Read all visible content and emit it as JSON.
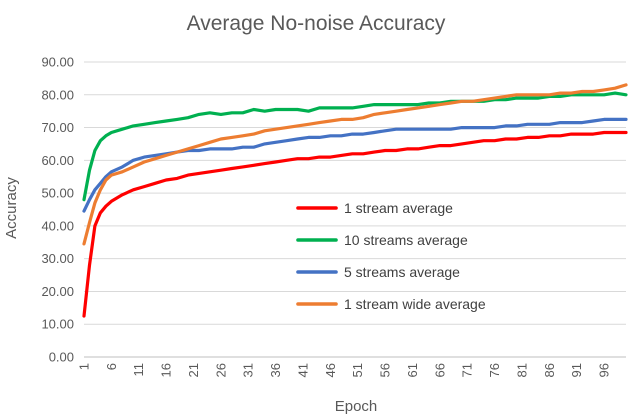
{
  "chart_data": {
    "type": "line",
    "title": "Average No-noise Accuracy",
    "xlabel": "Epoch",
    "ylabel": "Accuracy",
    "ylim": [
      0,
      90
    ],
    "yticks": [
      "0.00",
      "10.00",
      "20.00",
      "30.00",
      "40.00",
      "50.00",
      "60.00",
      "70.00",
      "80.00",
      "90.00"
    ],
    "xticks": [
      "1",
      "6",
      "11",
      "16",
      "21",
      "26",
      "31",
      "36",
      "41",
      "46",
      "51",
      "56",
      "61",
      "66",
      "71",
      "76",
      "81",
      "86",
      "91",
      "96"
    ],
    "grid": true,
    "legend_position": "center-right",
    "series": [
      {
        "name": "1 stream average",
        "color": "#ff0000",
        "points": [
          [
            1,
            12.5
          ],
          [
            2,
            28
          ],
          [
            3,
            40
          ],
          [
            4,
            44
          ],
          [
            5,
            46
          ],
          [
            6,
            47.5
          ],
          [
            8,
            49.5
          ],
          [
            10,
            51
          ],
          [
            12,
            52
          ],
          [
            14,
            53
          ],
          [
            16,
            54
          ],
          [
            18,
            54.5
          ],
          [
            20,
            55.5
          ],
          [
            22,
            56
          ],
          [
            24,
            56.5
          ],
          [
            26,
            57
          ],
          [
            28,
            57.5
          ],
          [
            30,
            58
          ],
          [
            32,
            58.5
          ],
          [
            34,
            59
          ],
          [
            36,
            59.5
          ],
          [
            38,
            60
          ],
          [
            40,
            60.5
          ],
          [
            42,
            60.5
          ],
          [
            44,
            61
          ],
          [
            46,
            61
          ],
          [
            48,
            61.5
          ],
          [
            50,
            62
          ],
          [
            52,
            62
          ],
          [
            54,
            62.5
          ],
          [
            56,
            63
          ],
          [
            58,
            63
          ],
          [
            60,
            63.5
          ],
          [
            62,
            63.5
          ],
          [
            64,
            64
          ],
          [
            66,
            64.5
          ],
          [
            68,
            64.5
          ],
          [
            70,
            65
          ],
          [
            72,
            65.5
          ],
          [
            74,
            66
          ],
          [
            76,
            66
          ],
          [
            78,
            66.5
          ],
          [
            80,
            66.5
          ],
          [
            82,
            67
          ],
          [
            84,
            67
          ],
          [
            86,
            67.5
          ],
          [
            88,
            67.5
          ],
          [
            90,
            68
          ],
          [
            92,
            68
          ],
          [
            94,
            68
          ],
          [
            96,
            68.5
          ],
          [
            98,
            68.5
          ],
          [
            100,
            68.5
          ]
        ]
      },
      {
        "name": "10 streams average",
        "color": "#00b050",
        "points": [
          [
            1,
            48
          ],
          [
            2,
            57
          ],
          [
            3,
            63
          ],
          [
            4,
            66
          ],
          [
            5,
            67.5
          ],
          [
            6,
            68.5
          ],
          [
            8,
            69.5
          ],
          [
            10,
            70.5
          ],
          [
            12,
            71
          ],
          [
            14,
            71.5
          ],
          [
            16,
            72
          ],
          [
            18,
            72.5
          ],
          [
            20,
            73
          ],
          [
            22,
            74
          ],
          [
            24,
            74.5
          ],
          [
            26,
            74
          ],
          [
            28,
            74.5
          ],
          [
            30,
            74.5
          ],
          [
            32,
            75.5
          ],
          [
            34,
            75
          ],
          [
            36,
            75.5
          ],
          [
            38,
            75.5
          ],
          [
            40,
            75.5
          ],
          [
            42,
            75
          ],
          [
            44,
            76
          ],
          [
            46,
            76
          ],
          [
            48,
            76
          ],
          [
            50,
            76
          ],
          [
            52,
            76.5
          ],
          [
            54,
            77
          ],
          [
            56,
            77
          ],
          [
            58,
            77
          ],
          [
            60,
            77
          ],
          [
            62,
            77
          ],
          [
            64,
            77.5
          ],
          [
            66,
            77.5
          ],
          [
            68,
            78
          ],
          [
            70,
            78
          ],
          [
            72,
            78
          ],
          [
            74,
            78
          ],
          [
            76,
            78.5
          ],
          [
            78,
            78.5
          ],
          [
            80,
            79
          ],
          [
            82,
            79
          ],
          [
            84,
            79
          ],
          [
            86,
            79.5
          ],
          [
            88,
            79.5
          ],
          [
            90,
            80
          ],
          [
            92,
            80
          ],
          [
            94,
            80
          ],
          [
            96,
            80
          ],
          [
            98,
            80.5
          ],
          [
            100,
            80
          ]
        ]
      },
      {
        "name": "5 streams average",
        "color": "#4472c4",
        "points": [
          [
            1,
            44.5
          ],
          [
            2,
            48
          ],
          [
            3,
            51
          ],
          [
            4,
            53
          ],
          [
            5,
            55
          ],
          [
            6,
            56.5
          ],
          [
            8,
            58
          ],
          [
            10,
            60
          ],
          [
            12,
            61
          ],
          [
            14,
            61.5
          ],
          [
            16,
            62
          ],
          [
            18,
            62.5
          ],
          [
            20,
            63
          ],
          [
            22,
            63
          ],
          [
            24,
            63.5
          ],
          [
            26,
            63.5
          ],
          [
            28,
            63.5
          ],
          [
            30,
            64
          ],
          [
            32,
            64
          ],
          [
            34,
            65
          ],
          [
            36,
            65.5
          ],
          [
            38,
            66
          ],
          [
            40,
            66.5
          ],
          [
            42,
            67
          ],
          [
            44,
            67
          ],
          [
            46,
            67.5
          ],
          [
            48,
            67.5
          ],
          [
            50,
            68
          ],
          [
            52,
            68
          ],
          [
            54,
            68.5
          ],
          [
            56,
            69
          ],
          [
            58,
            69.5
          ],
          [
            60,
            69.5
          ],
          [
            62,
            69.5
          ],
          [
            64,
            69.5
          ],
          [
            66,
            69.5
          ],
          [
            68,
            69.5
          ],
          [
            70,
            70
          ],
          [
            72,
            70
          ],
          [
            74,
            70
          ],
          [
            76,
            70
          ],
          [
            78,
            70.5
          ],
          [
            80,
            70.5
          ],
          [
            82,
            71
          ],
          [
            84,
            71
          ],
          [
            86,
            71
          ],
          [
            88,
            71.5
          ],
          [
            90,
            71.5
          ],
          [
            92,
            71.5
          ],
          [
            94,
            72
          ],
          [
            96,
            72.5
          ],
          [
            98,
            72.5
          ],
          [
            100,
            72.5
          ]
        ]
      },
      {
        "name": "1 stream wide average",
        "color": "#ed7d31",
        "points": [
          [
            1,
            34.5
          ],
          [
            2,
            41
          ],
          [
            3,
            47
          ],
          [
            4,
            51
          ],
          [
            5,
            54
          ],
          [
            6,
            55.5
          ],
          [
            8,
            56.5
          ],
          [
            10,
            58
          ],
          [
            12,
            59.5
          ],
          [
            14,
            60.5
          ],
          [
            16,
            61.5
          ],
          [
            18,
            62.5
          ],
          [
            20,
            63.5
          ],
          [
            22,
            64.5
          ],
          [
            24,
            65.5
          ],
          [
            26,
            66.5
          ],
          [
            28,
            67
          ],
          [
            30,
            67.5
          ],
          [
            32,
            68
          ],
          [
            34,
            69
          ],
          [
            36,
            69.5
          ],
          [
            38,
            70
          ],
          [
            40,
            70.5
          ],
          [
            42,
            71
          ],
          [
            44,
            71.5
          ],
          [
            46,
            72
          ],
          [
            48,
            72.5
          ],
          [
            50,
            72.5
          ],
          [
            52,
            73
          ],
          [
            54,
            74
          ],
          [
            56,
            74.5
          ],
          [
            58,
            75
          ],
          [
            60,
            75.5
          ],
          [
            62,
            76
          ],
          [
            64,
            76.5
          ],
          [
            66,
            77
          ],
          [
            68,
            77.5
          ],
          [
            70,
            78
          ],
          [
            72,
            78
          ],
          [
            74,
            78.5
          ],
          [
            76,
            79
          ],
          [
            78,
            79.5
          ],
          [
            80,
            80
          ],
          [
            82,
            80
          ],
          [
            84,
            80
          ],
          [
            86,
            80
          ],
          [
            88,
            80.5
          ],
          [
            90,
            80.5
          ],
          [
            92,
            81
          ],
          [
            94,
            81
          ],
          [
            96,
            81.5
          ],
          [
            98,
            82
          ],
          [
            100,
            83
          ]
        ]
      }
    ]
  }
}
